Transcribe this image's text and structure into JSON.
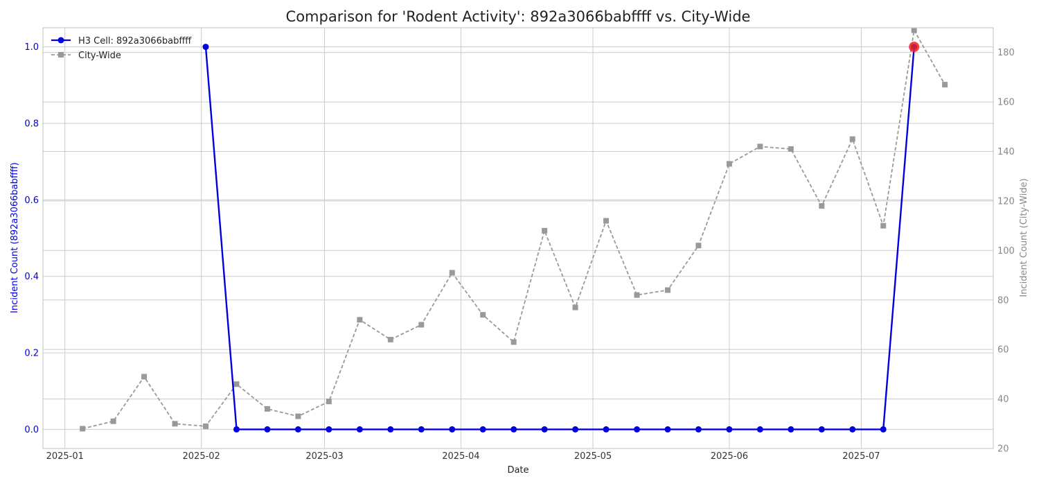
{
  "chart_data": {
    "type": "line",
    "title": "Comparison for 'Rodent Activity': 892a3066babffff vs. City-Wide",
    "xlabel": "Date",
    "ylabel_left": "Incident Count (892a3066babffff)",
    "ylabel_right": "Incident Count (City-Wide)",
    "xlim": [
      "2024-12-27",
      "2025-07-31"
    ],
    "ylim_left": [
      -0.05,
      1.05
    ],
    "ylim_right": [
      20,
      190
    ],
    "x_ticks": [
      "2025-01",
      "2025-02",
      "2025-03",
      "2025-04",
      "2025-05",
      "2025-06",
      "2025-07"
    ],
    "y_ticks_left": [
      0.0,
      0.2,
      0.4,
      0.6,
      0.8,
      1.0
    ],
    "y_ticks_left_labels": [
      "0.0",
      "0.2",
      "0.4",
      "0.6",
      "0.8",
      "1.0"
    ],
    "y_ticks_right": [
      20,
      40,
      60,
      80,
      100,
      120,
      140,
      160,
      180
    ],
    "y_ticks_right_labels": [
      "20",
      "40",
      "60",
      "80",
      "100",
      "120",
      "140",
      "160",
      "180"
    ],
    "grid": true,
    "legend_position": "top-left",
    "series": [
      {
        "name": "H3 Cell: 892a3066babffff",
        "axis": "left",
        "color": "#0000dd",
        "style": "solid",
        "marker": "circle",
        "x": [
          "2025-02-02",
          "2025-02-09",
          "2025-02-16",
          "2025-02-23",
          "2025-03-02",
          "2025-03-09",
          "2025-03-16",
          "2025-03-23",
          "2025-03-30",
          "2025-04-06",
          "2025-04-13",
          "2025-04-20",
          "2025-04-27",
          "2025-05-04",
          "2025-05-11",
          "2025-05-18",
          "2025-05-25",
          "2025-06-01",
          "2025-06-08",
          "2025-06-15",
          "2025-06-22",
          "2025-06-29",
          "2025-07-06",
          "2025-07-13"
        ],
        "values": [
          1,
          0,
          0,
          0,
          0,
          0,
          0,
          0,
          0,
          0,
          0,
          0,
          0,
          0,
          0,
          0,
          0,
          0,
          0,
          0,
          0,
          0,
          0,
          1
        ]
      },
      {
        "name": "City-Wide",
        "axis": "right",
        "color": "#999999",
        "style": "dashed",
        "marker": "square",
        "x": [
          "2025-01-05",
          "2025-01-12",
          "2025-01-19",
          "2025-01-26",
          "2025-02-02",
          "2025-02-09",
          "2025-02-16",
          "2025-02-23",
          "2025-03-02",
          "2025-03-09",
          "2025-03-16",
          "2025-03-23",
          "2025-03-30",
          "2025-04-06",
          "2025-04-13",
          "2025-04-20",
          "2025-04-27",
          "2025-05-04",
          "2025-05-11",
          "2025-05-18",
          "2025-05-25",
          "2025-06-01",
          "2025-06-08",
          "2025-06-15",
          "2025-06-22",
          "2025-06-29",
          "2025-07-06",
          "2025-07-13",
          "2025-07-20"
        ],
        "values": [
          28,
          31,
          49,
          30,
          29,
          46,
          36,
          33,
          39,
          72,
          64,
          70,
          91,
          74,
          63,
          108,
          77,
          112,
          82,
          84,
          102,
          135,
          142,
          141,
          118,
          145,
          110,
          189,
          167
        ]
      }
    ],
    "highlight": {
      "series": "H3 Cell: 892a3066babffff",
      "x": "2025-07-13",
      "value": 1,
      "color": "#ee2222"
    }
  }
}
